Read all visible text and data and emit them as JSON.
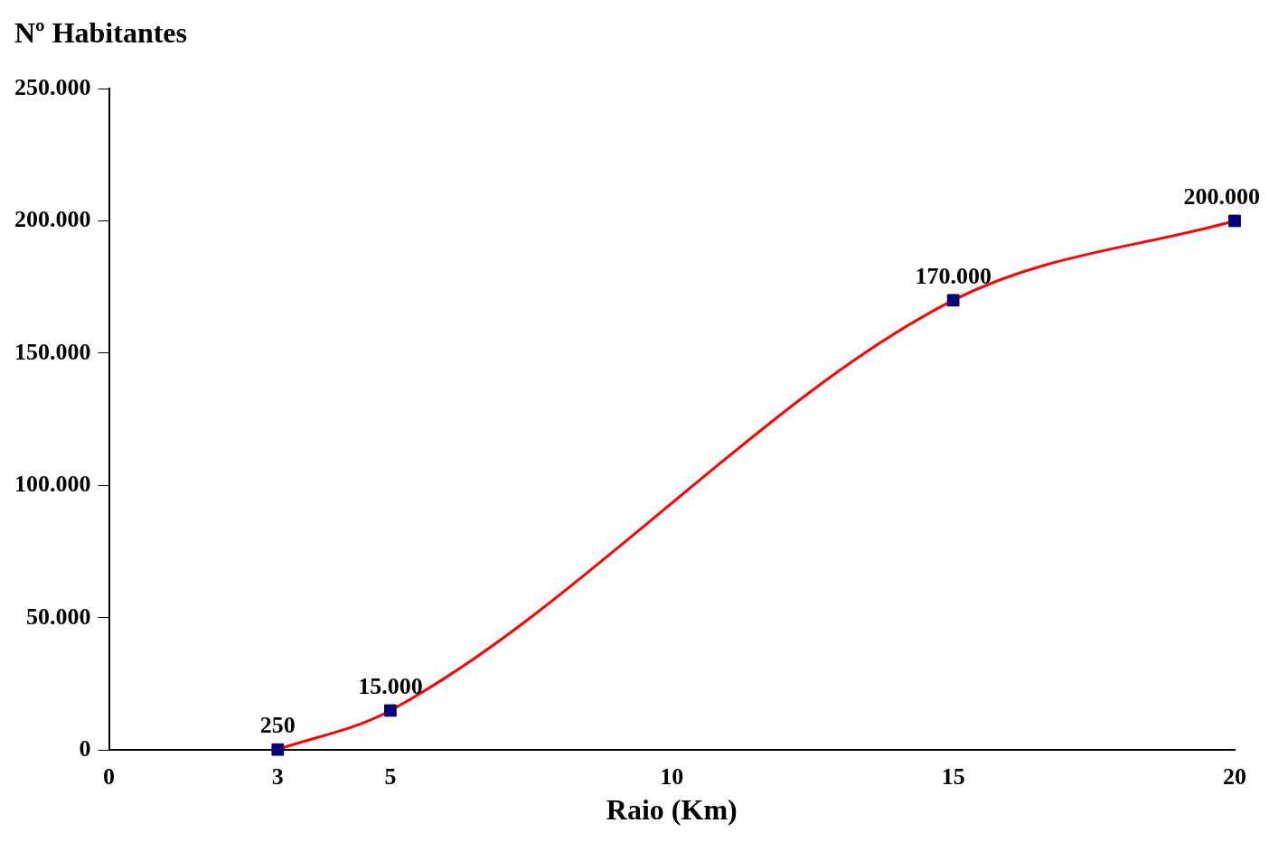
{
  "chart_data": {
    "type": "line",
    "ylabel": "Nº Habitantes",
    "xlabel": "Raio (Km)",
    "x": [
      3,
      5,
      15,
      20
    ],
    "series": [
      {
        "color": "#ff0000",
        "values": [
          250,
          15000,
          170000,
          200000
        ],
        "value_labels": [
          "250",
          "15.000",
          "170.000",
          "200.000"
        ]
      }
    ],
    "marker": "square",
    "line_style": "solid",
    "grid": false,
    "legend": false,
    "xlim": [
      0,
      20
    ],
    "xticks": [
      0,
      3,
      5,
      10,
      15,
      20
    ],
    "ylim": [
      0,
      250000
    ],
    "yticks": [
      {
        "value": 0,
        "label": "0"
      },
      {
        "value": 50000,
        "label": "50.000"
      },
      {
        "value": 100000,
        "label": "100.000"
      },
      {
        "value": 150000,
        "label": "150.000"
      },
      {
        "value": 200000,
        "label": "200.000"
      },
      {
        "value": 250000,
        "label": "250.000"
      }
    ]
  }
}
